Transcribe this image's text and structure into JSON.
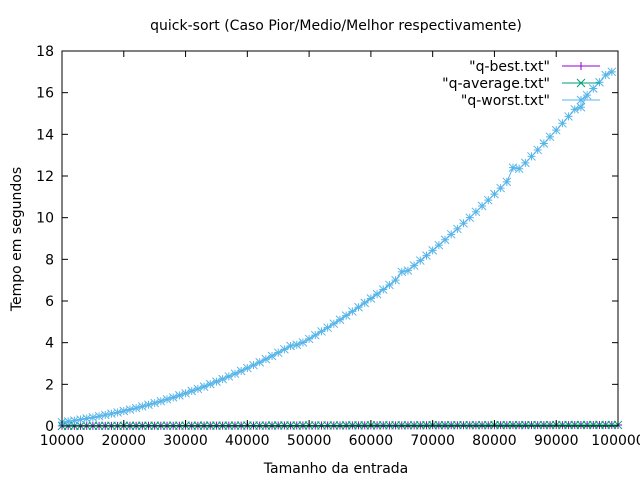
{
  "chart_data": {
    "type": "line",
    "title": "quick-sort (Caso Pior/Medio/Melhor respectivamente)",
    "xlabel": "Tamanho da entrada",
    "ylabel": "Tempo em segundos",
    "xlim": [
      10000,
      100000
    ],
    "ylim": [
      0,
      18
    ],
    "xticks": [
      10000,
      20000,
      30000,
      40000,
      50000,
      60000,
      70000,
      80000,
      90000,
      100000
    ],
    "yticks": [
      0,
      2,
      4,
      6,
      8,
      10,
      12,
      14,
      16,
      18
    ],
    "grid": false,
    "legend_position": "top-right",
    "series": [
      {
        "name": "\"q-best.txt\"",
        "color": "#9400d3",
        "marker": "plus",
        "x_start": 10000,
        "x_step": 1000,
        "values": [
          0.005,
          0.005,
          0.005,
          0.006,
          0.006,
          0.007,
          0.007,
          0.008,
          0.008,
          0.009,
          0.009,
          0.01,
          0.01,
          0.011,
          0.011,
          0.012,
          0.012,
          0.013,
          0.013,
          0.014,
          0.014,
          0.015,
          0.015,
          0.016,
          0.016,
          0.017,
          0.017,
          0.018,
          0.018,
          0.019,
          0.019,
          0.02,
          0.02,
          0.021,
          0.021,
          0.022,
          0.022,
          0.023,
          0.023,
          0.024,
          0.024,
          0.025,
          0.025,
          0.026,
          0.026,
          0.027,
          0.027,
          0.028,
          0.028,
          0.029,
          0.029,
          0.03,
          0.03,
          0.031,
          0.031,
          0.032,
          0.032,
          0.033,
          0.033,
          0.034,
          0.034,
          0.035,
          0.035,
          0.036,
          0.036,
          0.037,
          0.037,
          0.038,
          0.038,
          0.039,
          0.039,
          0.04,
          0.04,
          0.041,
          0.041,
          0.042,
          0.042,
          0.043,
          0.043,
          0.044,
          0.044,
          0.045,
          0.045,
          0.046,
          0.046,
          0.047,
          0.047,
          0.048,
          0.048,
          0.049,
          0.05
        ]
      },
      {
        "name": "\"q-average.txt\"",
        "color": "#009e73",
        "marker": "x",
        "x_start": 10000,
        "x_step": 1000,
        "values": [
          0.006,
          0.006,
          0.007,
          0.007,
          0.008,
          0.008,
          0.009,
          0.009,
          0.01,
          0.01,
          0.011,
          0.011,
          0.012,
          0.012,
          0.013,
          0.013,
          0.014,
          0.014,
          0.015,
          0.015,
          0.016,
          0.016,
          0.017,
          0.017,
          0.018,
          0.018,
          0.019,
          0.019,
          0.02,
          0.02,
          0.021,
          0.021,
          0.022,
          0.022,
          0.023,
          0.023,
          0.024,
          0.024,
          0.025,
          0.025,
          0.026,
          0.026,
          0.027,
          0.027,
          0.028,
          0.028,
          0.029,
          0.029,
          0.03,
          0.03,
          0.031,
          0.031,
          0.032,
          0.032,
          0.033,
          0.033,
          0.034,
          0.034,
          0.035,
          0.035,
          0.036,
          0.036,
          0.037,
          0.037,
          0.038,
          0.038,
          0.039,
          0.039,
          0.04,
          0.04,
          0.041,
          0.041,
          0.042,
          0.042,
          0.043,
          0.043,
          0.044,
          0.044,
          0.045,
          0.045,
          0.046,
          0.046,
          0.047,
          0.047,
          0.048,
          0.048,
          0.049,
          0.049,
          0.05,
          0.05,
          0.051
        ]
      },
      {
        "name": "\"q-worst.txt\"",
        "color": "#56b4e9",
        "marker": "star",
        "x_start": 10000,
        "x_step": 1000,
        "values": [
          0.18,
          0.22,
          0.26,
          0.31,
          0.36,
          0.41,
          0.47,
          0.53,
          0.59,
          0.65,
          0.72,
          0.79,
          0.86,
          0.94,
          1.02,
          1.1,
          1.19,
          1.28,
          1.37,
          1.47,
          1.57,
          1.68,
          1.78,
          1.89,
          2.01,
          2.13,
          2.25,
          2.38,
          2.51,
          2.64,
          2.78,
          2.92,
          3.06,
          3.21,
          3.36,
          3.52,
          3.68,
          3.84,
          3.9,
          4.01,
          4.18,
          4.36,
          4.54,
          4.72,
          4.91,
          5.1,
          5.3,
          5.5,
          5.7,
          5.91,
          6.12,
          6.33,
          6.55,
          6.77,
          7.0,
          7.4,
          7.46,
          7.7,
          7.94,
          8.18,
          8.43,
          8.68,
          8.94,
          9.2,
          9.46,
          9.73,
          10.0,
          10.28,
          10.56,
          10.84,
          11.13,
          11.42,
          11.72,
          12.4,
          12.35,
          12.63,
          12.94,
          13.25,
          13.56,
          13.88,
          14.2,
          14.53,
          14.86,
          15.2,
          15.3,
          15.88,
          16.2,
          16.5,
          16.85,
          17.0
        ]
      }
    ]
  }
}
